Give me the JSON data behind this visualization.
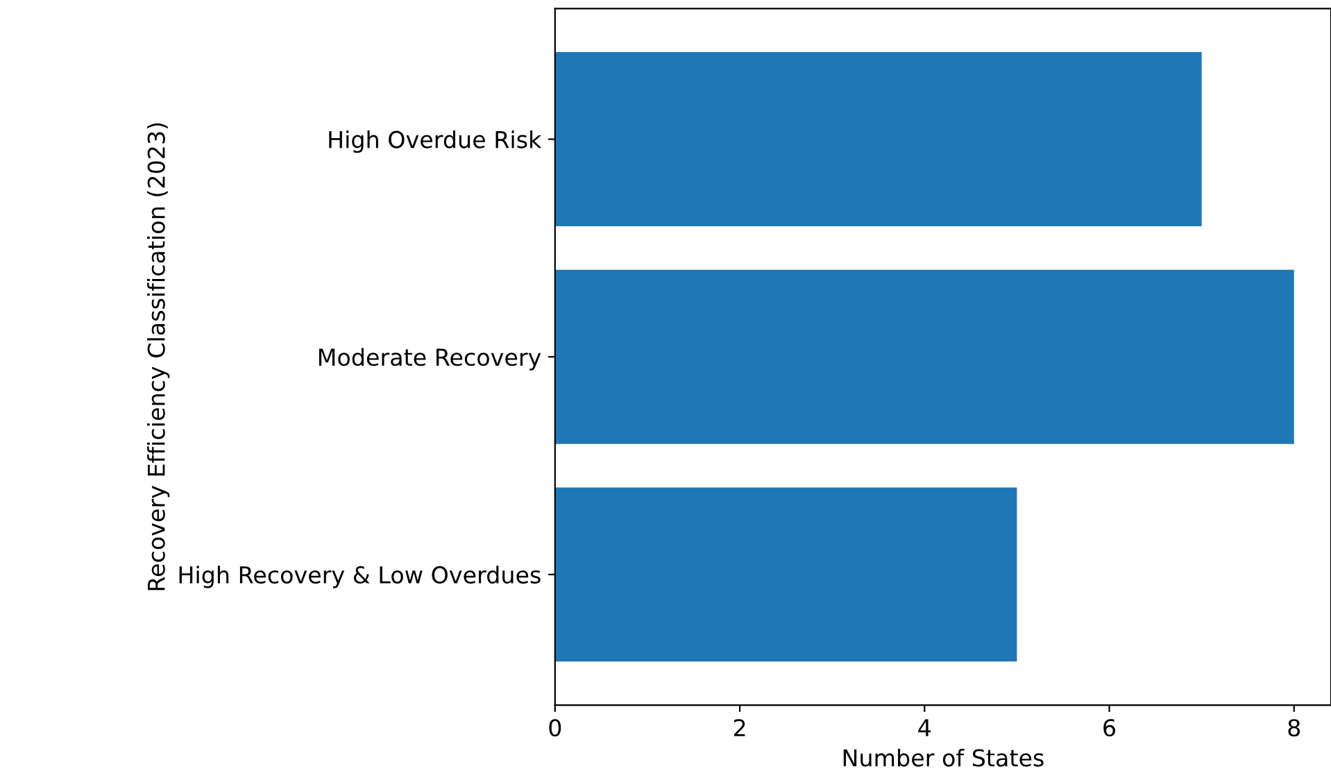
{
  "chart_data": {
    "type": "bar",
    "orientation": "horizontal",
    "categories": [
      "High Overdue Risk",
      "Moderate Recovery",
      "High Recovery & Low Overdues"
    ],
    "values": [
      7,
      8,
      5
    ],
    "color": "#1f77b4",
    "xlim": [
      0,
      8.4
    ],
    "xticks": [
      0,
      2,
      4,
      6,
      8
    ],
    "xlabel": "Number of States",
    "ylabel": "Recovery Efficiency Classification (2023)",
    "grid": false
  }
}
